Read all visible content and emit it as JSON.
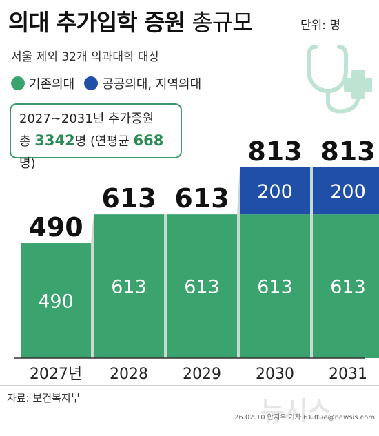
{
  "header": {
    "title_bold": "의대 추가입학 증원",
    "title_light": "총규모",
    "unit": "단위: 명",
    "subtitle": "서울 제외 32개 의과대학 대상"
  },
  "legend": [
    {
      "label": "기존의대",
      "color": "#3aa36e"
    },
    {
      "label": "공공의대, 지역의대",
      "color": "#1f4fa6"
    }
  ],
  "infobox": {
    "line1": "2027~2031년 추가증원",
    "line2_prefix": "총 ",
    "line2_total": "3342",
    "line2_mid": "명 (연평균 ",
    "line2_avg": "668",
    "line2_suffix": "명)"
  },
  "chart_data": {
    "type": "bar",
    "stacked": true,
    "categories": [
      "2027년",
      "2028",
      "2029",
      "2030",
      "2031"
    ],
    "series": [
      {
        "name": "기존의대",
        "values": [
          490,
          613,
          613,
          613,
          613
        ],
        "color": "#3aa36e"
      },
      {
        "name": "공공의대, 지역의대",
        "values": [
          0,
          0,
          0,
          200,
          200
        ],
        "color": "#1f4fa6"
      }
    ],
    "totals": [
      490,
      613,
      613,
      813,
      813
    ],
    "ylim": [
      0,
      813
    ]
  },
  "footer": {
    "source": "자료: 보건복지부",
    "credit": "26.02.10 안지우 기자 613tue@newsis.com",
    "watermark": "뉴시스"
  }
}
